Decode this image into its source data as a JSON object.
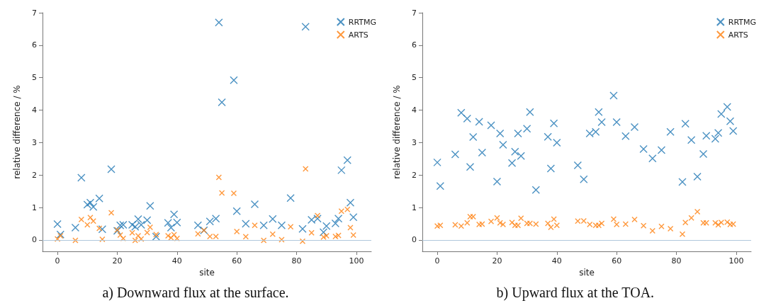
{
  "chart_data": [
    {
      "type": "scatter",
      "annotations": [
        "a) Downward flux at the surface."
      ],
      "xlabel": "site",
      "ylabel": "relative difference / %",
      "xlim": [
        -5,
        105
      ],
      "xticks": [
        0,
        20,
        40,
        60,
        80,
        100
      ],
      "ylim": [
        -0.35,
        7
      ],
      "yticks": [
        0,
        1,
        2,
        3,
        4,
        5,
        6,
        7
      ],
      "grid": false,
      "legend": "top right",
      "marker": "cross",
      "x": [
        0,
        1,
        6,
        8,
        10,
        11,
        12,
        14,
        15,
        18,
        20,
        21,
        22,
        25,
        26,
        27,
        28,
        30,
        31,
        33,
        37,
        38,
        39,
        40,
        47,
        49,
        51,
        53,
        54,
        55,
        59,
        60,
        63,
        66,
        69,
        72,
        75,
        78,
        82,
        83,
        85,
        87,
        89,
        90,
        93,
        94,
        95,
        97,
        98,
        99
      ],
      "ref_lines": [
        {
          "axis": "y",
          "value": 0,
          "color": "#b0c8dc"
        }
      ],
      "series": [
        {
          "name": "RRTMG",
          "color": "#1f77b4",
          "values": [
            0.49,
            0.17,
            0.38,
            1.92,
            1.09,
            1.15,
            1.02,
            1.28,
            0.33,
            2.18,
            0.28,
            0.45,
            0.47,
            0.47,
            0.41,
            0.64,
            0.47,
            0.61,
            1.05,
            0.1,
            0.53,
            0.38,
            0.79,
            0.54,
            0.45,
            0.3,
            0.57,
            0.66,
            6.7,
            4.24,
            4.92,
            0.89,
            0.5,
            1.1,
            0.45,
            0.65,
            0.45,
            1.29,
            0.34,
            6.57,
            0.62,
            0.66,
            0.24,
            0.43,
            0.51,
            0.66,
            2.15,
            2.46,
            1.15,
            0.7
          ]
        },
        {
          "name": "ARTS",
          "color": "#ff7f0e",
          "values": [
            0.03,
            0.13,
            -0.01,
            0.63,
            0.47,
            0.69,
            0.58,
            0.36,
            0.02,
            0.84,
            0.31,
            0.15,
            0.05,
            0.22,
            -0.01,
            0.13,
            0.03,
            0.23,
            0.39,
            0.17,
            0.13,
            0.07,
            0.16,
            0.05,
            0.19,
            0.3,
            0.11,
            0.11,
            1.93,
            1.45,
            1.44,
            0.26,
            0.1,
            0.45,
            -0.01,
            0.18,
            0.01,
            0.41,
            -0.04,
            2.19,
            0.22,
            0.75,
            0.09,
            0.13,
            0.11,
            0.14,
            0.89,
            0.94,
            0.38,
            0.15
          ]
        }
      ]
    },
    {
      "type": "scatter",
      "annotations": [
        "b) Upward flux at the TOA."
      ],
      "xlabel": "site",
      "ylabel": "relative difference / %",
      "xlim": [
        -5,
        105
      ],
      "xticks": [
        0,
        20,
        40,
        60,
        80,
        100
      ],
      "ylim": [
        -0.35,
        7
      ],
      "yticks": [
        0,
        1,
        2,
        3,
        4,
        5,
        6,
        7
      ],
      "grid": false,
      "legend": "top right",
      "marker": "cross",
      "x": [
        0,
        1,
        6,
        8,
        10,
        11,
        12,
        14,
        15,
        18,
        20,
        21,
        22,
        25,
        26,
        27,
        28,
        30,
        31,
        33,
        37,
        38,
        39,
        40,
        47,
        49,
        51,
        53,
        54,
        55,
        59,
        60,
        63,
        66,
        69,
        72,
        75,
        78,
        82,
        83,
        85,
        87,
        89,
        90,
        93,
        94,
        95,
        97,
        98,
        99
      ],
      "ref_lines": [
        {
          "axis": "y",
          "value": 0,
          "color": "#b0c8dc"
        }
      ],
      "series": [
        {
          "name": "RRTMG",
          "color": "#1f77b4",
          "values": [
            2.39,
            1.66,
            2.64,
            3.92,
            3.74,
            2.25,
            3.17,
            3.64,
            2.69,
            3.53,
            1.8,
            3.28,
            2.93,
            2.37,
            2.72,
            3.28,
            2.59,
            3.43,
            3.94,
            1.54,
            3.18,
            2.2,
            3.59,
            3.0,
            2.3,
            1.87,
            3.28,
            3.33,
            3.94,
            3.63,
            4.45,
            3.63,
            3.2,
            3.48,
            2.8,
            2.51,
            2.77,
            3.33,
            1.79,
            3.58,
            3.08,
            1.95,
            2.65,
            3.21,
            3.12,
            3.3,
            3.88,
            4.1,
            3.66,
            3.36
          ]
        },
        {
          "name": "ARTS",
          "color": "#ff7f0e",
          "values": [
            0.43,
            0.45,
            0.47,
            0.43,
            0.53,
            0.72,
            0.72,
            0.48,
            0.49,
            0.57,
            0.68,
            0.53,
            0.48,
            0.54,
            0.45,
            0.45,
            0.67,
            0.51,
            0.51,
            0.49,
            0.51,
            0.39,
            0.64,
            0.45,
            0.58,
            0.59,
            0.48,
            0.45,
            0.45,
            0.51,
            0.64,
            0.48,
            0.49,
            0.63,
            0.44,
            0.28,
            0.42,
            0.35,
            0.18,
            0.54,
            0.68,
            0.87,
            0.53,
            0.53,
            0.53,
            0.47,
            0.54,
            0.55,
            0.48,
            0.49
          ]
        }
      ]
    }
  ]
}
